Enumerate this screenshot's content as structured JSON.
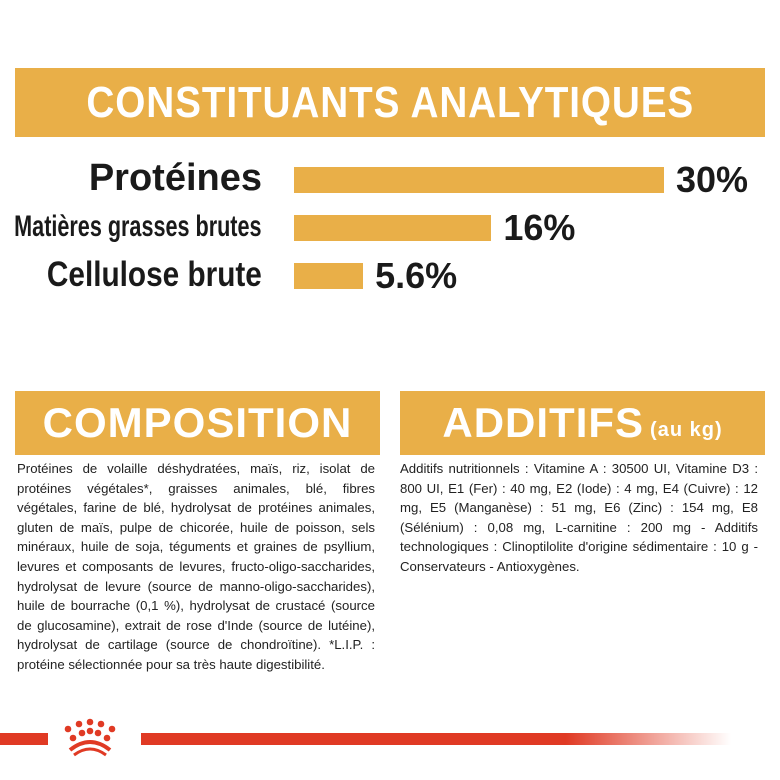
{
  "header": {
    "title": "CONSTITUANTS ANALYTIQUES"
  },
  "chart_data": {
    "type": "bar",
    "orientation": "horizontal",
    "categories": [
      "Protéines",
      "Matières grasses brutes",
      "Cellulose brute"
    ],
    "values": [
      30,
      16,
      5.6
    ],
    "value_labels": [
      "30%",
      "16%",
      "5.6%"
    ],
    "unit": "%",
    "bar_color": "#E9AF48",
    "grid": false
  },
  "composition": {
    "title": "COMPOSITION",
    "text": "Protéines de volaille déshydratées, maïs, riz, isolat de protéines végétales*, graisses animales, blé, fibres végétales, farine de blé, hydrolysat de protéines animales, gluten de maïs, pulpe de chicorée, huile de poisson, sels minéraux, huile de soja, téguments et graines de psyllium, levures et composants de levures, fructo-oligo-saccharides, hydrolysat de levure (source de manno-oligo-saccharides), huile de bourrache (0,1 %), hydrolysat de crustacé (source de glucosamine), extrait de rose d'Inde (source de lutéine), hydrolysat de cartilage (source de chondroïtine). *L.I.P. : protéine sélectionnée pour sa très haute digestibilité."
  },
  "additifs": {
    "title": "ADDITIFS",
    "subtitle": "(au kg)",
    "text": "Additifs nutritionnels : Vitamine A : 30500 UI, Vitamine D3 : 800 UI, E1 (Fer) : 40 mg, E2 (Iode) : 4 mg, E4 (Cuivre) : 12 mg, E5 (Manganèse) : 51 mg, E6 (Zinc) : 154 mg, E8 (Sélénium) : 0,08 mg, L-carnitine : 200 mg - Additifs technologiques : Clinoptilolite d'origine sédimentaire : 10 g - Conservateurs - Antioxygènes."
  },
  "colors": {
    "accent": "#E9AF48",
    "brand_red": "#E03A24"
  },
  "logo": {
    "icon": "royal-canin-crown-icon"
  }
}
